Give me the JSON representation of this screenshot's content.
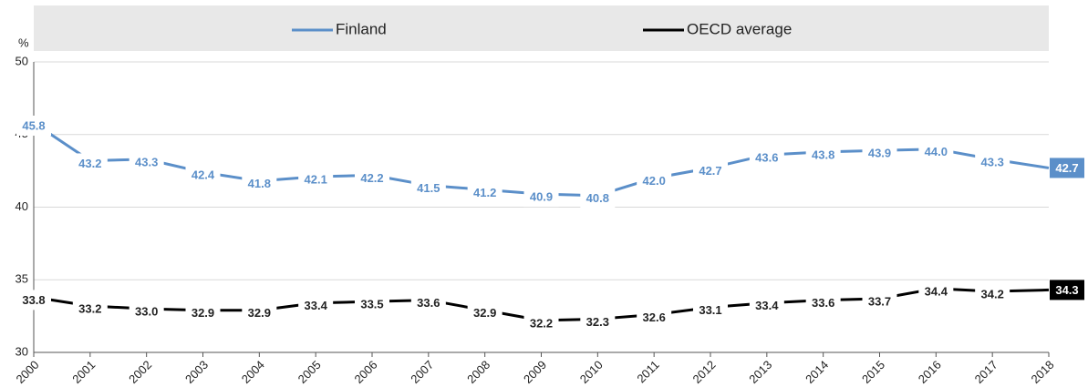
{
  "chart_data": {
    "type": "line",
    "y_label": "%",
    "x": [
      2000,
      2001,
      2002,
      2003,
      2004,
      2005,
      2006,
      2007,
      2008,
      2009,
      2010,
      2011,
      2012,
      2013,
      2014,
      2015,
      2016,
      2017,
      2018
    ],
    "xlim": [
      2000,
      2018
    ],
    "xticks": [
      2000,
      2001,
      2002,
      2003,
      2004,
      2005,
      2006,
      2007,
      2008,
      2009,
      2010,
      2011,
      2012,
      2013,
      2014,
      2015,
      2016,
      2017,
      2018
    ],
    "ylim": [
      30,
      50
    ],
    "yticks": [
      30,
      35,
      40,
      45,
      50
    ],
    "grid": true,
    "legend": "top",
    "series": [
      {
        "name": "Finland",
        "color": "#5b8fc9",
        "values": [
          45.8,
          43.2,
          43.3,
          42.4,
          41.8,
          42.1,
          42.2,
          41.5,
          41.2,
          40.9,
          40.8,
          42.0,
          42.7,
          43.6,
          43.8,
          43.9,
          44.0,
          43.3,
          42.7
        ],
        "value_labels": [
          "45.8",
          "43.2",
          "43.3",
          "42.4",
          "41.8",
          "42.1",
          "42.2",
          "41.5",
          "41.2",
          "40.9",
          "40.8",
          "42.0",
          "42.7",
          "43.6",
          "43.8",
          "43.9",
          "44.0",
          "43.3",
          "42.7"
        ]
      },
      {
        "name": "OECD average",
        "color": "#000000",
        "values": [
          33.8,
          33.2,
          33.0,
          32.9,
          32.9,
          33.4,
          33.5,
          33.6,
          32.9,
          32.2,
          32.3,
          32.6,
          33.1,
          33.4,
          33.6,
          33.7,
          34.4,
          34.2,
          34.3
        ],
        "value_labels": [
          "33.8",
          "33.2",
          "33.0",
          "32.9",
          "32.9",
          "33.4",
          "33.5",
          "33.6",
          "32.9",
          "32.2",
          "32.3",
          "32.6",
          "33.1",
          "33.4",
          "33.6",
          "33.7",
          "34.4",
          "34.2",
          "34.3"
        ]
      }
    ]
  }
}
